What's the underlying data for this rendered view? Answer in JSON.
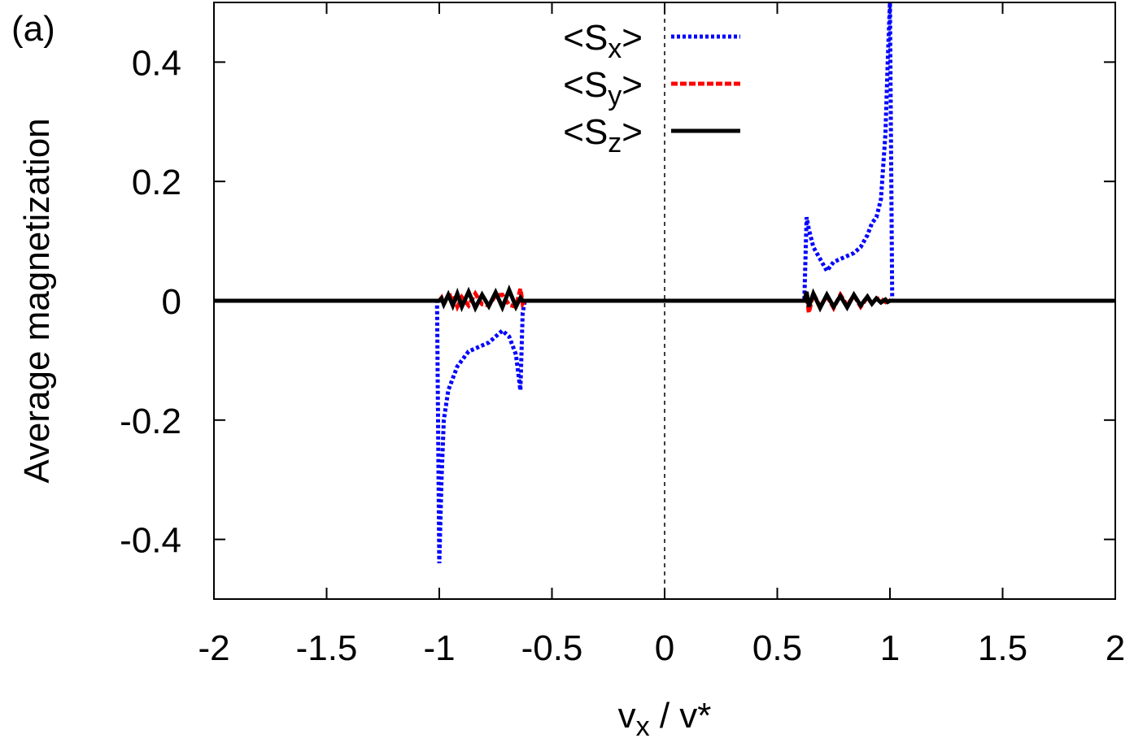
{
  "chart_data": {
    "type": "line",
    "annotation": "(a)",
    "x_label": "vx / v*",
    "y_label": "Average magnetization",
    "x": [
      -2,
      -1.01,
      -1,
      -0.99,
      -0.98,
      -0.96,
      -0.94,
      -0.92,
      -0.9,
      -0.87,
      -0.84,
      -0.81,
      -0.78,
      -0.75,
      -0.72,
      -0.69,
      -0.66,
      -0.64,
      -0.63,
      -0.62,
      0.62,
      0.63,
      0.64,
      0.66,
      0.69,
      0.72,
      0.75,
      0.78,
      0.81,
      0.84,
      0.87,
      0.9,
      0.92,
      0.94,
      0.96,
      0.98,
      0.99,
      1,
      1.01,
      2
    ],
    "series": [
      {
        "name": "<Sx>",
        "color": "#0000ff",
        "style": "dotted",
        "values": [
          0,
          0,
          -0.44,
          -0.3,
          -0.2,
          -0.15,
          -0.13,
          -0.11,
          -0.1,
          -0.085,
          -0.08,
          -0.075,
          -0.07,
          -0.06,
          -0.05,
          -0.06,
          -0.09,
          -0.15,
          -0.02,
          0,
          0,
          0.14,
          0.12,
          0.09,
          0.07,
          0.05,
          0.065,
          0.07,
          0.075,
          0.08,
          0.09,
          0.11,
          0.13,
          0.14,
          0.17,
          0.28,
          0.4,
          0.5,
          0,
          0
        ]
      },
      {
        "name": "<Sy>",
        "color": "#ff0000",
        "style": "dashed",
        "values": [
          0,
          0,
          0,
          0.005,
          -0.005,
          0.008,
          0.01,
          -0.01,
          0.006,
          -0.008,
          0.012,
          -0.006,
          -0.008,
          0.009,
          0.01,
          -0.007,
          -0.01,
          0.02,
          -0.005,
          0,
          0,
          0.01,
          -0.02,
          0.012,
          -0.01,
          0.008,
          -0.012,
          0.01,
          -0.008,
          0.009,
          -0.01,
          0.006,
          -0.005,
          0.004,
          0.003,
          -0.002,
          0.002,
          0,
          0,
          0
        ]
      },
      {
        "name": "<Sz>",
        "color": "#000000",
        "style": "solid",
        "values": [
          0,
          0,
          0,
          0.004,
          -0.006,
          0.01,
          -0.008,
          0.012,
          -0.01,
          0.015,
          -0.012,
          0.01,
          -0.009,
          0.014,
          -0.011,
          0.018,
          -0.01,
          0.005,
          0,
          0,
          0,
          0.015,
          -0.01,
          0.012,
          -0.012,
          0.01,
          -0.01,
          0.008,
          -0.011,
          0.01,
          -0.008,
          0.007,
          -0.005,
          0.004,
          -0.003,
          0.002,
          -0.002,
          0,
          0,
          0
        ]
      }
    ],
    "xlim": [
      -2,
      2
    ],
    "ylim": [
      -0.5,
      0.5
    ],
    "xticks": [
      -2,
      -1.5,
      -1,
      -0.5,
      0,
      0.5,
      1,
      1.5,
      2
    ],
    "yticks": [
      -0.4,
      -0.2,
      0,
      0.2,
      0.4
    ],
    "zero_line": true,
    "legend": "top"
  }
}
